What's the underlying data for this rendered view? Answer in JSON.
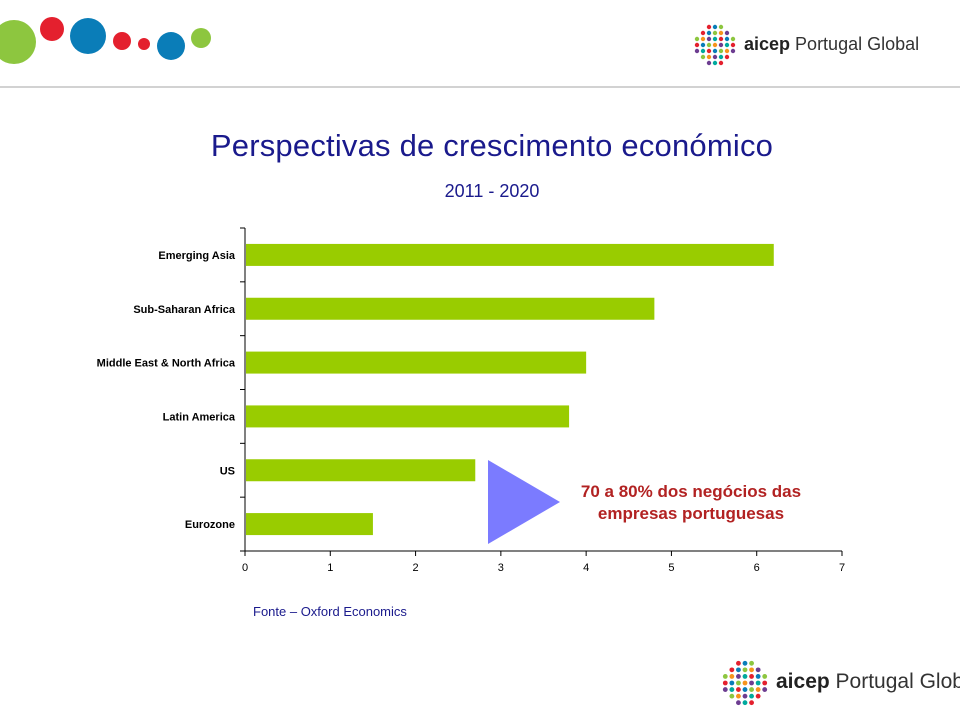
{
  "header": {
    "brand": {
      "name": "aicep",
      "suffix": "Portugal Global"
    }
  },
  "slide": {
    "title": "Perspectivas  de crescimento económico",
    "subtitle": "2011 - 2020",
    "source": "Fonte – Oxford Economics",
    "callout": {
      "line1": "70 a 80% dos negócios das",
      "line2": "empresas portuguesas",
      "text_color": "#b22222",
      "arrow_color": "#7b7bff"
    }
  },
  "footer": {
    "brand": {
      "name": "aicep",
      "suffix": "Portugal Global"
    }
  },
  "colors": {
    "bar": "#99cc00",
    "title": "#1a1a8c",
    "dots": [
      "#8dc63f",
      "#e4202e",
      "#0a7db8",
      "#e4202e",
      "#e4202e",
      "#0a7db8",
      "#8dc63f"
    ]
  },
  "chart_data": {
    "type": "bar",
    "orientation": "horizontal",
    "categories": [
      "Emerging Asia",
      "Sub-Saharan Africa",
      "Middle East & North Africa",
      "Latin America",
      "US",
      "Eurozone"
    ],
    "values": [
      6.2,
      4.8,
      4.0,
      3.8,
      2.7,
      1.5
    ],
    "xlim": [
      0,
      7
    ],
    "xticks": [
      "0",
      "1",
      "2",
      "3",
      "4",
      "5",
      "6",
      "7"
    ],
    "grid": false,
    "legend": "none"
  }
}
